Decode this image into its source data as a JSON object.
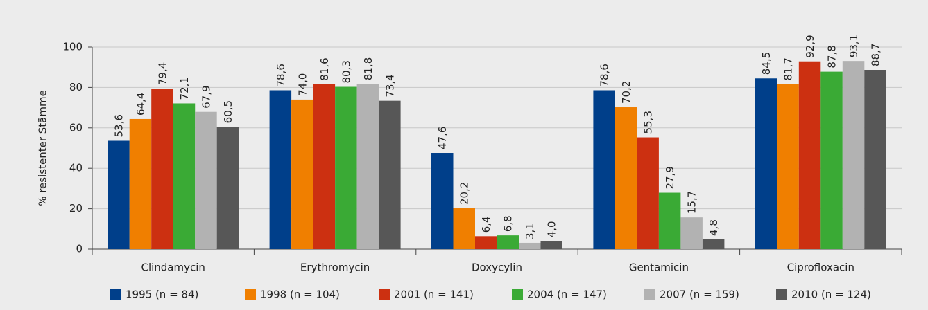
{
  "chart_data": {
    "type": "bar",
    "ylabel": "% resistenter Stämme",
    "categories": [
      "Clindamycin",
      "Erythromycin",
      "Doxycylin",
      "Gentamicin",
      "Ciprofloxacin"
    ],
    "series": [
      {
        "name": "1995 (n = 84)",
        "color": "#003f8a",
        "values": [
          53.6,
          78.6,
          47.6,
          78.6,
          84.5
        ],
        "value_labels": [
          "53,6",
          "78,6",
          "47,6",
          "78,6",
          "84,5"
        ]
      },
      {
        "name": "1998 (n = 104)",
        "color": "#f07f00",
        "values": [
          64.4,
          74.0,
          20.2,
          70.2,
          81.7
        ],
        "value_labels": [
          "64,4",
          "74,0",
          "20,2",
          "70,2",
          "81,7"
        ]
      },
      {
        "name": "2001 (n = 141)",
        "color": "#cc3011",
        "values": [
          79.4,
          81.6,
          6.4,
          55.3,
          92.9
        ],
        "value_labels": [
          "79,4",
          "81,6",
          "6,4",
          "55,3",
          "92,9"
        ]
      },
      {
        "name": "2004 (n = 147)",
        "color": "#3aaa35",
        "values": [
          72.1,
          80.3,
          6.8,
          27.9,
          87.8
        ],
        "value_labels": [
          "72,1",
          "80,3",
          "6,8",
          "27,9",
          "87,8"
        ]
      },
      {
        "name": "2007 (n = 159)",
        "color": "#b2b2b2",
        "values": [
          67.9,
          81.8,
          3.1,
          15.7,
          93.1
        ],
        "value_labels": [
          "67,9",
          "81,8",
          "3,1",
          "15,7",
          "93,1"
        ]
      },
      {
        "name": "2010 (n = 124)",
        "color": "#575757",
        "values": [
          60.5,
          73.4,
          4.0,
          4.8,
          88.7
        ],
        "value_labels": [
          "60,5",
          "73,4",
          "4,0",
          "4,8",
          "88,7"
        ]
      }
    ],
    "ylim": [
      0,
      100
    ],
    "yticks": [
      0,
      20,
      40,
      60,
      80,
      100
    ],
    "grid": true,
    "legend": "bottom"
  }
}
